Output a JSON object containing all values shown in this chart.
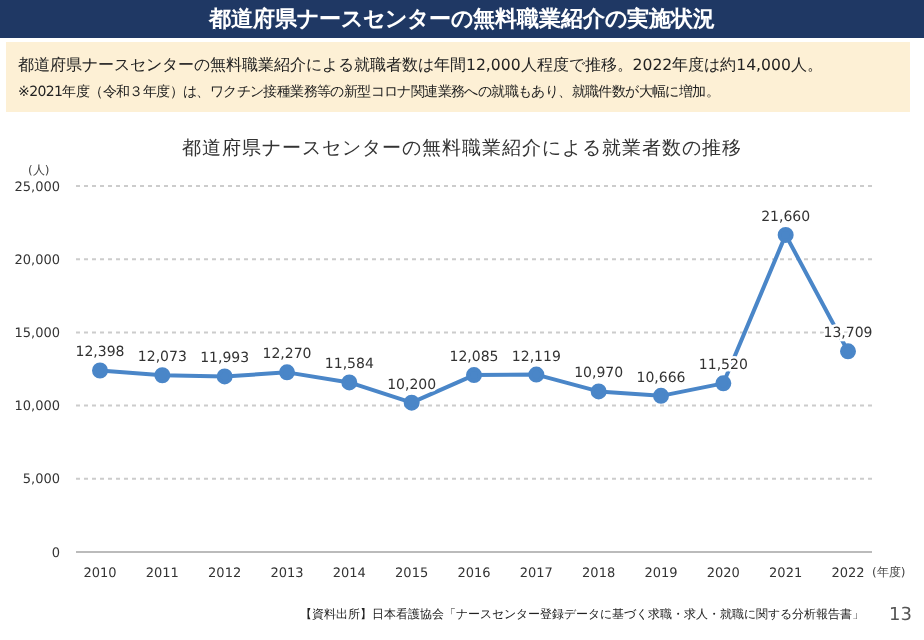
{
  "chart_data": {
    "type": "line",
    "title": "都道府県ナースセンターの無料職業紹介の実施状況",
    "subtitle": "都道府県ナースセンターの無料職業紹介による就業者数の推移",
    "xlabel": "(年度)",
    "ylabel": "(人)",
    "annotations": [
      "都道府県ナースセンターの無料職業紹介による就職者数は年間12,000人程度で推移。2022年度は約14,000人。",
      "※2021年度（令和３年度）は、ワクチン接種業務等の新型コロナ関連業務への就職もあり、就職件数が大幅に増加。",
      "【資料出所】日本看護協会「ナースセンター登録データに基づく求職・求人・就職に関する分析報告書」",
      "13"
    ],
    "categories": [
      "2010",
      "2011",
      "2012",
      "2013",
      "2014",
      "2015",
      "2016",
      "2017",
      "2018",
      "2019",
      "2020",
      "2021",
      "2022"
    ],
    "series": [
      {
        "color": "#4a86c8",
        "values": [
          12398,
          12073,
          11993,
          12270,
          11584,
          10200,
          12085,
          12119,
          10970,
          10666,
          11520,
          21660,
          13709
        ],
        "value_labels": [
          "12,398",
          "12,073",
          "11,993",
          "12,270",
          "11,584",
          "10,200",
          "12,085",
          "12,119",
          "10,970",
          "10,666",
          "11,520",
          "21,660",
          "13,709"
        ]
      }
    ],
    "ylim": [
      0,
      25000
    ],
    "yticks": [
      0,
      {
        "value": 5000,
        "label": "5,000"
      },
      {
        "value": 10000,
        "label": "10,000"
      },
      {
        "value": 15000,
        "label": "15,000"
      },
      {
        "value": 20000,
        "label": "20,000"
      },
      {
        "value": 25000,
        "label": "25,000"
      }
    ],
    "grid": "y",
    "marker": "circle",
    "line_style": "solid"
  }
}
